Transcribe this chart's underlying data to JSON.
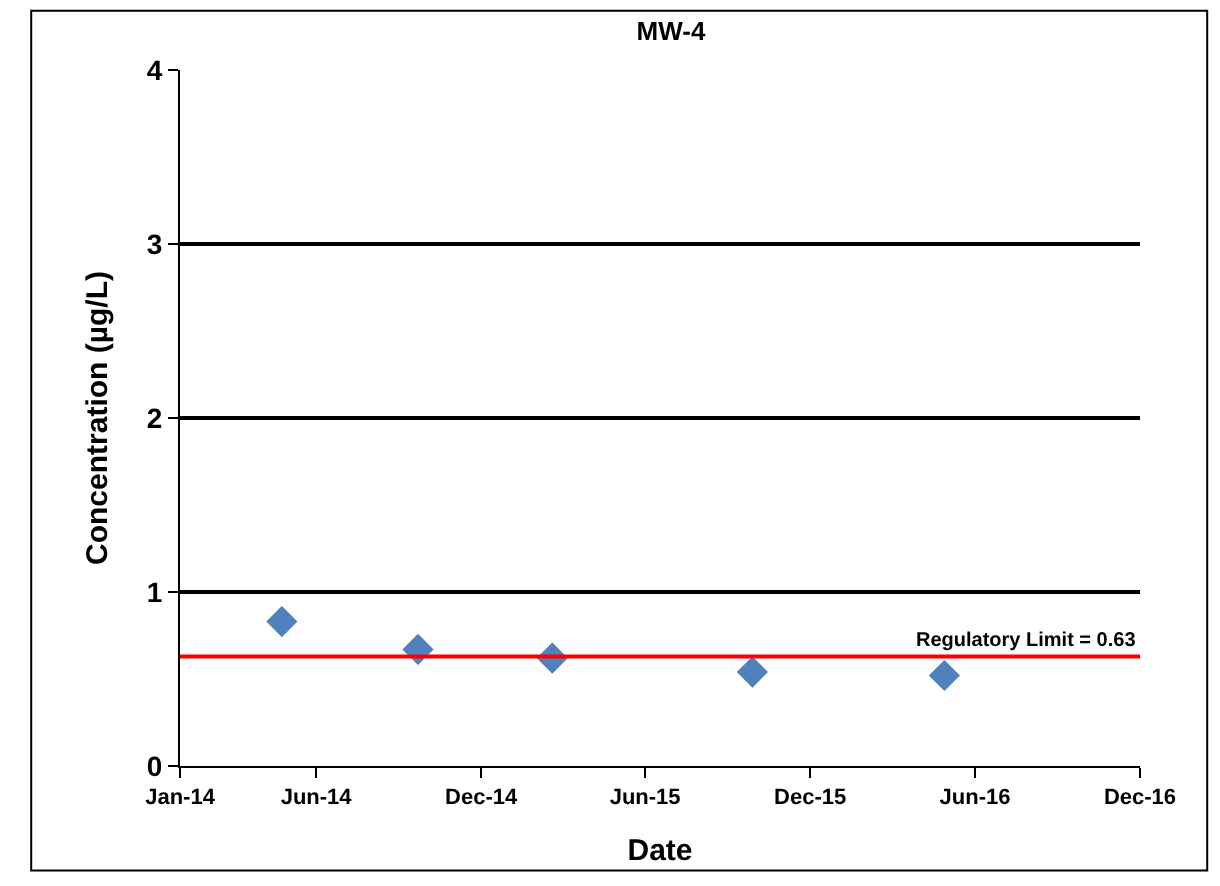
{
  "chart_data": {
    "type": "scatter",
    "title": "MW-4",
    "xlabel": "Date",
    "ylabel": "Concentration (µg/L)",
    "x": [
      "2014-04-24",
      "2014-09-22",
      "2015-02-18",
      "2015-09-28",
      "2016-04-28"
    ],
    "series": [
      {
        "color": "#4f81bd",
        "values": [
          0.83,
          0.67,
          0.62,
          0.54,
          0.52
        ]
      }
    ],
    "marker": "diamond",
    "grid": "y",
    "xlim": [
      "2014-01-01",
      "2016-12-01"
    ],
    "xticks": [
      {
        "value": "2014-01-01",
        "label": "Jan-14"
      },
      {
        "value": "2014-06-01",
        "label": "Jun-14"
      },
      {
        "value": "2014-12-01",
        "label": "Dec-14"
      },
      {
        "value": "2015-06-01",
        "label": "Jun-15"
      },
      {
        "value": "2015-12-01",
        "label": "Dec-15"
      },
      {
        "value": "2016-06-01",
        "label": "Jun-16"
      },
      {
        "value": "2016-12-01",
        "label": "Dec-16"
      }
    ],
    "ylim": [
      0,
      4
    ],
    "yticks": [
      0,
      1,
      2,
      3,
      4
    ],
    "ref_lines": [
      {
        "axis": "y",
        "value": 0.63,
        "label": "Regulatory Limit = 0.63",
        "color": "#ff0000",
        "line_style": "solid"
      }
    ]
  }
}
